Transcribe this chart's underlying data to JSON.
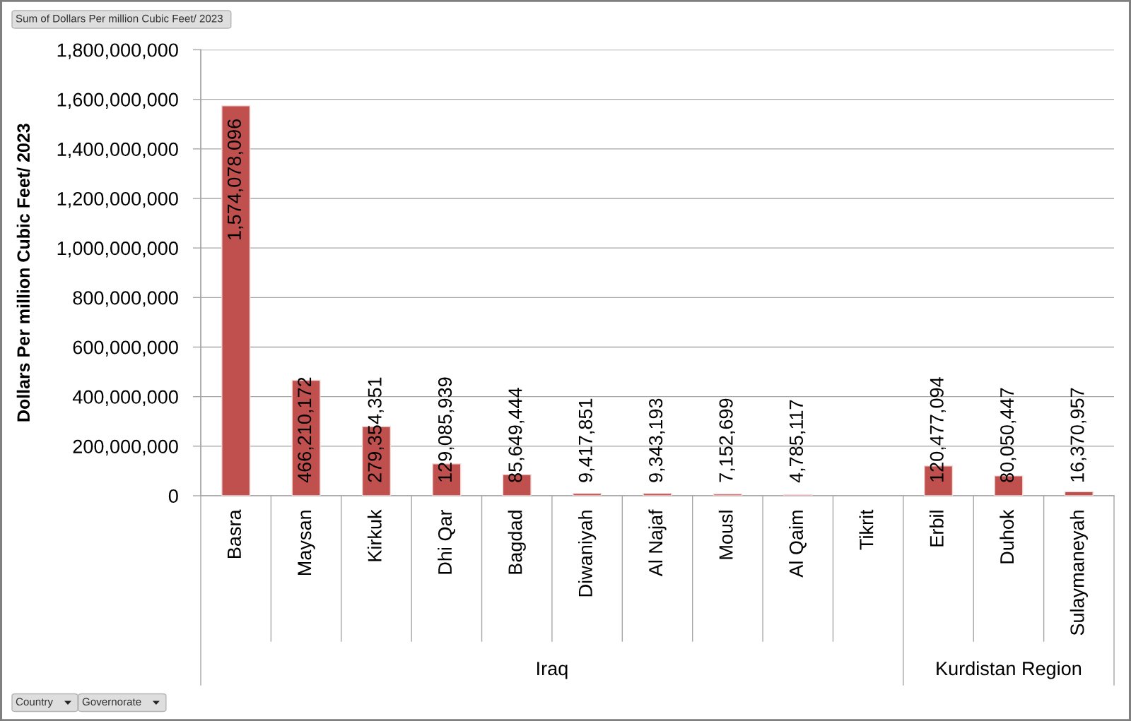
{
  "chart_data": {
    "type": "bar",
    "categories": [
      "Basra",
      "Maysan",
      "Kirkuk",
      "Dhi Qar",
      "Bagdad",
      "Diwaniyah",
      "Al Najaf",
      "Mousl",
      "Al Qaim",
      "Tikrit",
      "Erbil",
      "Duhok",
      "Sulaymaneyah"
    ],
    "values": [
      1574078096,
      466210172,
      279354351,
      129085939,
      85649444,
      9417851,
      9343193,
      7152699,
      4785117,
      null,
      120477094,
      80050447,
      16370957
    ],
    "value_labels": [
      "1,574,078,096",
      "466,210,172",
      "279,354,351",
      "129,085,939",
      "85,649,444",
      "9,417,851",
      "9,343,193",
      "7,152,699",
      "4,785,117",
      null,
      "120,477,094",
      "80,050,447",
      "16,370,957"
    ],
    "color": "#c0504d",
    "ylabel": "Dollars Per million Cubic Feet/ 2023",
    "ylim": [
      0,
      1800000000
    ],
    "yticks": [
      {
        "value": 0,
        "label": "0"
      },
      {
        "value": 200000000,
        "label": "200,000,000"
      },
      {
        "value": 400000000,
        "label": "400,000,000"
      },
      {
        "value": 600000000,
        "label": "600,000,000"
      },
      {
        "value": 800000000,
        "label": "800,000,000"
      },
      {
        "value": 1000000000,
        "label": "1,000,000,000"
      },
      {
        "value": 1200000000,
        "label": "1,200,000,000"
      },
      {
        "value": 1400000000,
        "label": "1,400,000,000"
      },
      {
        "value": 1600000000,
        "label": "1,600,000,000"
      },
      {
        "value": 1800000000,
        "label": "1,800,000,000"
      }
    ],
    "grid": "y",
    "annotations": [
      "Sum of Dollars Per million Cubic Feet/ 2023",
      "Iraq",
      "Kurdistan Region",
      "Country",
      "Governorate"
    ]
  }
}
